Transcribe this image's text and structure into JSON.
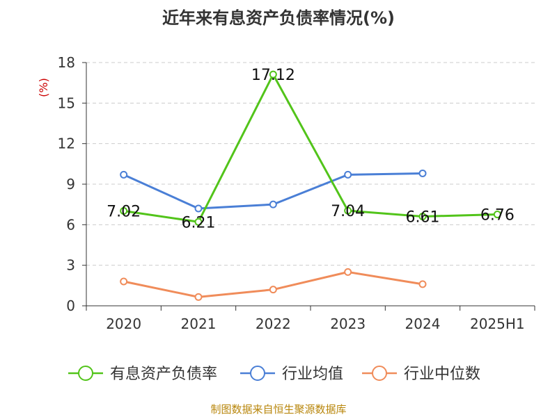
{
  "title": "近年来有息资产负债率情况(%)",
  "source": "制图数据来自恒生聚源数据库",
  "colors": {
    "有息资产负债率": "#52c41a",
    "行业均值": "#4a7fd6",
    "行业中位数": "#f08c5a",
    "grid": "#cccccc",
    "axis": "#333333",
    "ylabel": "#cc0000"
  },
  "chart_data": {
    "type": "line",
    "categories": [
      "2020",
      "2021",
      "2022",
      "2023",
      "2024",
      "2025H1"
    ],
    "ylabel": "(%)",
    "ylim": [
      0,
      18
    ],
    "yticks": [
      0,
      3,
      6,
      9,
      12,
      15,
      18
    ],
    "grid": true,
    "legend_position": "bottom",
    "series": [
      {
        "name": "有息资产负债率",
        "values": [
          7.02,
          6.21,
          17.12,
          7.04,
          6.61,
          6.76
        ],
        "show_labels": true
      },
      {
        "name": "行业均值",
        "values": [
          9.7,
          7.2,
          7.5,
          9.7,
          9.8,
          null
        ],
        "show_labels": false
      },
      {
        "name": "行业中位数",
        "values": [
          1.8,
          0.65,
          1.2,
          2.5,
          1.6,
          null
        ],
        "show_labels": false
      }
    ]
  }
}
